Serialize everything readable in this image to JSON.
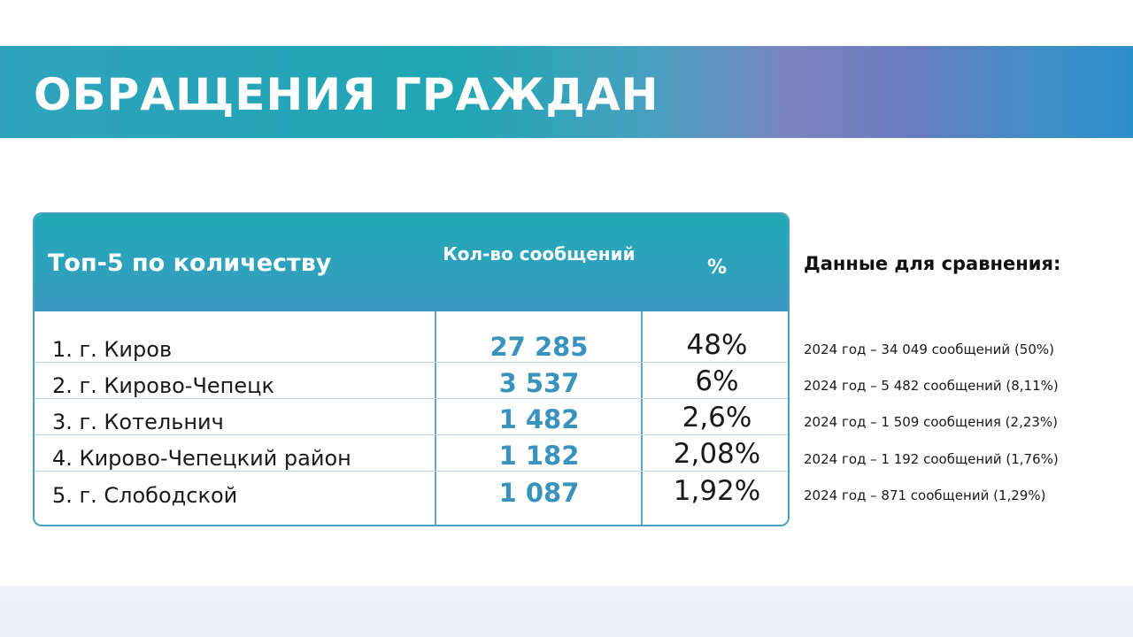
{
  "banner": {
    "title": "ОБРАЩЕНИЯ ГРАЖДАН",
    "colors": [
      "#2fa3bd",
      "#7d84c0",
      "#2b8ec8"
    ]
  },
  "table": {
    "header": {
      "label": "Топ-5 по количеству",
      "count_label": "Кол-во сообщений",
      "percent_label": "%"
    },
    "rows": [
      {
        "name": "1. г. Киров",
        "count": "27 285",
        "percent": "48%"
      },
      {
        "name": "2. г. Кирово-Чепецк",
        "count": "3 537",
        "percent": "6%"
      },
      {
        "name": "3. г. Котельнич",
        "count": "1 482",
        "percent": "2,6%"
      },
      {
        "name": "4. Кирово-Чепецкий район",
        "count": "1 182",
        "percent": "2,08%"
      },
      {
        "name": "5. г. Слободской",
        "count": "1 087",
        "percent": "1,92%"
      }
    ],
    "accent_color": "#3a93bd"
  },
  "comparison": {
    "title": "Данные для сравнения:",
    "items": [
      "2024 год – 34 049 сообщений (50%)",
      "2024 год – 5 482 сообщений (8,11%)",
      "2024 год – 1 509 сообщения (2,23%)",
      "2024 год – 1 192 сообщений (1,76%)",
      "2024 год – 871 сообщений (1,29%)"
    ]
  }
}
